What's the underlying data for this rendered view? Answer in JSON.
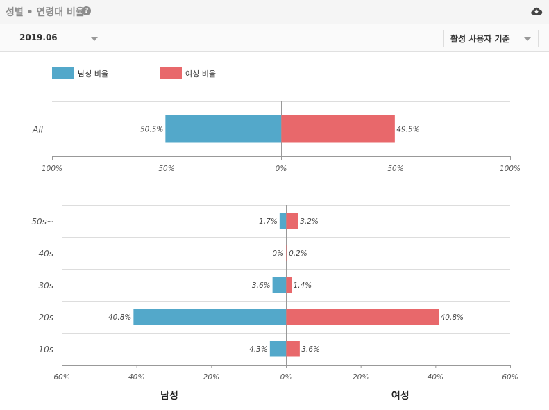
{
  "header": {
    "title": "성별 • 연령대 비율",
    "help_icon": "question-circle-icon",
    "download_icon": "cloud-download-icon",
    "help_glyph": "?"
  },
  "toolbar": {
    "date_value": "2019.06",
    "basis_value": "활성 사용자 기준"
  },
  "colors": {
    "male": "#53a8ca",
    "female": "#e8686b",
    "grid": "#dddddd",
    "axis": "#999999"
  },
  "chart_data": [
    {
      "type": "bar",
      "orientation": "horizontal-diverging",
      "legend": [
        "남성 비율",
        "여성 비율"
      ],
      "legend_placement": "top-left",
      "categories": [
        "All"
      ],
      "series": [
        {
          "name": "남성 비율",
          "values": [
            50.5
          ]
        },
        {
          "name": "여성 비율",
          "values": [
            49.5
          ]
        }
      ],
      "value_labels": {
        "male": [
          "50.5%"
        ],
        "female": [
          "49.5%"
        ]
      },
      "xlim": [
        -100,
        100
      ],
      "xticks": [
        "100%",
        "50%",
        "0%",
        "50%",
        "100%"
      ]
    },
    {
      "type": "bar",
      "orientation": "horizontal-diverging",
      "categories": [
        "50s~",
        "40s",
        "30s",
        "20s",
        "10s"
      ],
      "series": [
        {
          "name": "남성 비율",
          "values": [
            1.7,
            0,
            3.6,
            40.8,
            4.3
          ]
        },
        {
          "name": "여성 비율",
          "values": [
            3.2,
            0.2,
            1.4,
            40.8,
            3.6
          ]
        }
      ],
      "value_labels": {
        "male": [
          "1.7%",
          "0%",
          "3.6%",
          "40.8%",
          "4.3%"
        ],
        "female": [
          "3.2%",
          "0.2%",
          "1.4%",
          "40.8%",
          "3.6%"
        ]
      },
      "xlim": [
        -60,
        60
      ],
      "xticks": [
        "60%",
        "40%",
        "20%",
        "0%",
        "20%",
        "40%",
        "60%"
      ],
      "bottom_labels": {
        "male": "남성",
        "female": "여성"
      }
    }
  ]
}
